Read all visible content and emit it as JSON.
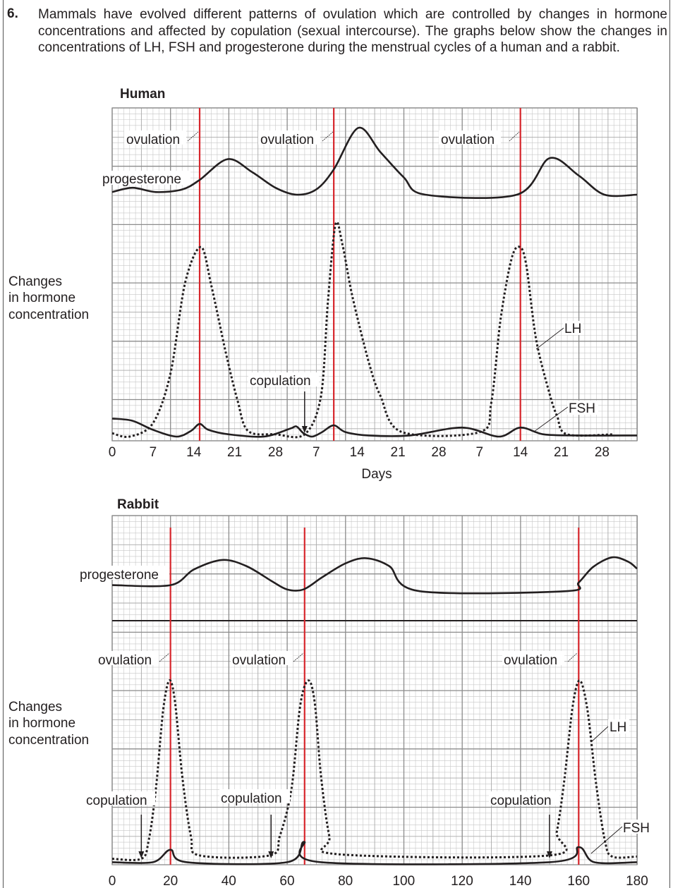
{
  "question": {
    "number": "6.",
    "text": "Mammals have evolved different patterns of ovulation which are controlled by changes in hormone concentrations and affected by copulation (sexual intercourse). The graphs below show the changes in concentrations of LH, FSH and progesterone during the menstrual cycles of a human and a rabbit."
  },
  "colors": {
    "ovulation_line": "#d7262c",
    "curve": "#231f20",
    "grid_minor": "#c8c8c8",
    "grid_major": "#8c8c8c"
  },
  "chart_data": [
    {
      "type": "line",
      "title": "Human",
      "ylabel": "Changes in hormone concentration",
      "xlabel": "Days",
      "grid": true,
      "x_continuous_days_range": [
        0,
        90
      ],
      "x_ticks": [
        0,
        7,
        14,
        21,
        28,
        35,
        42,
        49,
        56,
        63,
        70,
        77,
        84
      ],
      "x_tick_labels": [
        "0",
        "7",
        "14",
        "21",
        "28",
        "7",
        "14",
        "21",
        "28",
        "7",
        "14",
        "21",
        "28"
      ],
      "annotations": {
        "ovulation_label": "ovulation",
        "ovulation_days": [
          15,
          38,
          70
        ],
        "copulation_label": "copulation",
        "copulation_days": [
          33
        ],
        "progesterone_label": "progesterone",
        "lh_label": "LH",
        "fsh_label": "FSH"
      },
      "series": [
        {
          "name": "progesterone",
          "style": "solid",
          "x": [
            0,
            3.5,
            7.5,
            12,
            15,
            19.8,
            24,
            28,
            31.6,
            35,
            38,
            42.2,
            46,
            50,
            53.7,
            69.4,
            75,
            80,
            84.4,
            90
          ],
          "y": [
            0.3,
            0.8,
            0.3,
            0.6,
            1.7,
            4.1,
            2.6,
            0.8,
            0,
            0.6,
            2.9,
            7.7,
            4.9,
            2.0,
            0,
            0,
            4.2,
            2.2,
            0,
            0
          ]
        },
        {
          "name": "LH",
          "style": "dotted",
          "x": [
            0,
            3,
            7,
            10,
            12.5,
            15.2,
            17,
            19.5,
            21.5,
            23.3,
            28,
            33,
            35.8,
            37,
            38.3,
            39.5,
            41.2,
            44,
            46,
            49.7,
            63,
            65,
            66.6,
            68.5,
            69.9,
            71,
            72.7,
            75,
            76.3,
            78,
            86
          ],
          "y": [
            0.15,
            0,
            0.6,
            2.8,
            6.8,
            8.4,
            6.7,
            3.7,
            1.6,
            0.25,
            0.1,
            0.1,
            1.8,
            6.0,
            9.4,
            8.5,
            6.2,
            3.3,
            1.8,
            0.2,
            0.2,
            1.5,
            5.2,
            7.9,
            8.4,
            7.6,
            4.3,
            1.9,
            0.9,
            0.1,
            0.1
          ]
        },
        {
          "name": "FSH",
          "style": "solid",
          "x": [
            0,
            3.5,
            7,
            11,
            13.5,
            15,
            16.5,
            20,
            26,
            30.5,
            31.6,
            32.8,
            34.3,
            36,
            38,
            40,
            44,
            51,
            60,
            66.3,
            70,
            74,
            80,
            90
          ],
          "y": [
            0.8,
            0.7,
            0.3,
            0,
            0.25,
            0.56,
            0.3,
            0.1,
            0,
            0.35,
            0.45,
            0.15,
            0,
            0.2,
            0.5,
            0.2,
            0.05,
            0.05,
            0.4,
            0,
            0.4,
            0.1,
            0.05,
            0.05
          ]
        }
      ]
    },
    {
      "type": "line",
      "title": "Rabbit",
      "ylabel": "Changes in hormone concentration",
      "grid": true,
      "xlim": [
        0,
        180
      ],
      "x_ticks": [
        0,
        20,
        40,
        60,
        80,
        100,
        120,
        140,
        160,
        180
      ],
      "x_tick_labels": [
        "0",
        "20",
        "40",
        "60",
        "80",
        "100",
        "120",
        "140",
        "160",
        "180"
      ],
      "annotations": {
        "ovulation_label": "ovulation",
        "ovulation_days": [
          20,
          66,
          160
        ],
        "copulation_label": "copulation",
        "copulation_days": [
          10,
          54.5,
          150
        ],
        "progesterone_label": "progesterone",
        "lh_label": "LH",
        "fsh_label": "FSH"
      },
      "series": [
        {
          "name": "progesterone",
          "style": "solid",
          "x": [
            0,
            20,
            28,
            37.7,
            46,
            55,
            60,
            65.6,
            72,
            80,
            87,
            95,
            105.5,
            155.6,
            160,
            165,
            171.5,
            177,
            180
          ],
          "y": [
            4.1,
            4.1,
            5.9,
            7.0,
            6.3,
            4.5,
            3.6,
            3.6,
            5.0,
            6.6,
            7.2,
            6.3,
            3.4,
            3.4,
            4.4,
            6.2,
            7.3,
            6.8,
            6.0
          ]
        },
        {
          "name": "LH",
          "style": "dotted",
          "x": [
            0,
            10,
            12.5,
            15,
            17.5,
            19.6,
            21.5,
            24,
            27,
            30,
            54,
            57.5,
            61.5,
            64.5,
            67.3,
            69.5,
            71.6,
            74.5,
            77.7,
            150,
            152.5,
            155,
            158,
            160.4,
            163,
            166,
            169,
            171.5,
            180
          ],
          "y": [
            0.2,
            0.2,
            1.0,
            3.3,
            6.8,
            8.1,
            7.2,
            3.9,
            1.2,
            0.35,
            0.35,
            1.2,
            3.3,
            7.0,
            8.1,
            7.1,
            3.9,
            1.2,
            0.4,
            0.35,
            1.4,
            3.6,
            7.0,
            8.1,
            6.8,
            3.5,
            1.0,
            0.3,
            0.3
          ]
        },
        {
          "name": "FSH",
          "style": "solid",
          "x": [
            0,
            14,
            20,
            25.6,
            60,
            65.8,
            71.6,
            150,
            160,
            165.3,
            180
          ],
          "y": [
            0.05,
            0.05,
            0.6,
            0.05,
            0.05,
            0.95,
            0.05,
            0.05,
            0.72,
            0.05,
            0.05
          ]
        }
      ]
    }
  ]
}
